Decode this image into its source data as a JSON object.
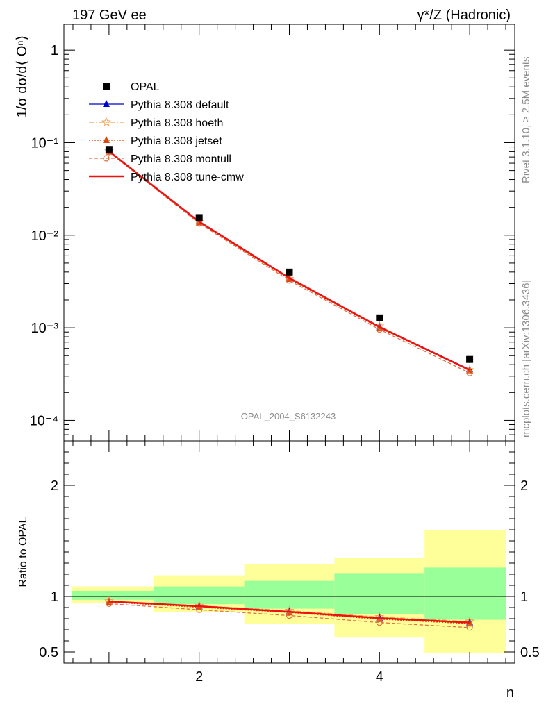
{
  "header": {
    "left": "197 GeV ee",
    "right": "γ*/Z (Hadronic)"
  },
  "side_labels": {
    "rivet": "Rivet 3.1.10, ≥ 2.5M events",
    "mcplots": "mcplots.cern.ch [arXiv:1306.3436]"
  },
  "watermark": "OPAL_2004_S6132243",
  "chart_data": [
    {
      "type": "line",
      "panel": "main",
      "ylabel": "1/σ dσ/d⟨ Oⁿ⟩",
      "yscale": "log",
      "ylim": [
        6e-05,
        1.9
      ],
      "xlim": [
        0.5,
        5.5
      ],
      "y_ticks": [
        {
          "value": 1,
          "label": "1"
        },
        {
          "value": 0.1,
          "label": "10⁻¹"
        },
        {
          "value": 0.01,
          "label": "10⁻²"
        },
        {
          "value": 0.001,
          "label": "10⁻³"
        },
        {
          "value": 0.0001,
          "label": "10⁻⁴"
        }
      ],
      "legend_position": "top-left",
      "data_series": {
        "name": "OPAL",
        "x": [
          1,
          2,
          3,
          4,
          5
        ],
        "y": [
          0.0845,
          0.0155,
          0.004,
          0.00128,
          0.000455
        ],
        "color": "#000000",
        "marker": "square"
      },
      "series": [
        {
          "name": "Pythia 8.308 default",
          "x": [
            1,
            2,
            3,
            4,
            5
          ],
          "y": [
            0.0805,
            0.0141,
            0.00345,
            0.00103,
            0.000355
          ],
          "color": "#0000cc",
          "marker": "triangle",
          "dash": ""
        },
        {
          "name": "Pythia 8.308 hoeth",
          "x": [
            1,
            2,
            3,
            4,
            5
          ],
          "y": [
            0.081,
            0.0139,
            0.0034,
            0.00104,
            0.00035
          ],
          "color": "#f0a050",
          "marker": "star",
          "dash": "7,3,2,3"
        },
        {
          "name": "Pythia 8.308 jetset",
          "x": [
            1,
            2,
            3,
            4,
            5
          ],
          "y": [
            0.08,
            0.0137,
            0.00335,
            0.001,
            0.000345
          ],
          "color": "#d84a10",
          "marker": "triangle",
          "dash": "2,2"
        },
        {
          "name": "Pythia 8.308 montull",
          "x": [
            1,
            2,
            3,
            4,
            5
          ],
          "y": [
            0.079,
            0.0134,
            0.00325,
            0.00096,
            0.000325
          ],
          "color": "#e07040",
          "marker": "circle",
          "dash": "5,3"
        },
        {
          "name": "Pythia 8.308 tune-cmw",
          "x": [
            1,
            2,
            3,
            4,
            5
          ],
          "y": [
            0.0805,
            0.014,
            0.00345,
            0.00102,
            0.00035
          ],
          "color": "#ee1111",
          "marker": "none",
          "dash": ""
        }
      ]
    },
    {
      "type": "line",
      "panel": "ratio",
      "xlabel": "n",
      "ylabel": "Ratio to OPAL",
      "ylim": [
        0.4,
        2.4
      ],
      "xlim": [
        0.5,
        5.5
      ],
      "x_ticks": [
        {
          "value": 2,
          "label": "2"
        },
        {
          "value": 4,
          "label": "4"
        }
      ],
      "y_ticks": [
        {
          "value": 0.5,
          "label": "0.5"
        },
        {
          "value": 1,
          "label": "1"
        },
        {
          "value": 2,
          "label": "2"
        }
      ],
      "bands": [
        {
          "x0": 0.5,
          "x1": 1.5,
          "inner": [
            0.97,
            1.05
          ],
          "outer": [
            0.94,
            1.09
          ]
        },
        {
          "x0": 1.5,
          "x1": 2.5,
          "inner": [
            0.93,
            1.09
          ],
          "outer": [
            0.86,
            1.19
          ]
        },
        {
          "x0": 2.5,
          "x1": 3.5,
          "inner": [
            0.89,
            1.14
          ],
          "outer": [
            0.75,
            1.29
          ]
        },
        {
          "x0": 3.5,
          "x1": 4.5,
          "inner": [
            0.84,
            1.21
          ],
          "outer": [
            0.63,
            1.35
          ]
        },
        {
          "x0": 4.5,
          "x1": 5.5,
          "inner": [
            0.79,
            1.26
          ],
          "outer": [
            0.49,
            1.6
          ]
        }
      ],
      "series": [
        {
          "name": "Pythia 8.308 default",
          "x": [
            1,
            2,
            3,
            4,
            5
          ],
          "y": [
            0.953,
            0.91,
            0.862,
            0.805,
            0.765
          ],
          "color": "#0000cc",
          "marker": "triangle",
          "dash": ""
        },
        {
          "name": "Pythia 8.308 hoeth",
          "x": [
            1,
            2,
            3,
            4,
            5
          ],
          "y": [
            0.958,
            0.917,
            0.872,
            0.815,
            0.775
          ],
          "color": "#f0a050",
          "marker": "star",
          "dash": "7,3,2,3"
        },
        {
          "name": "Pythia 8.308 jetset",
          "x": [
            1,
            2,
            3,
            4,
            5
          ],
          "y": [
            0.948,
            0.902,
            0.855,
            0.795,
            0.755
          ],
          "color": "#d84a10",
          "marker": "triangle",
          "dash": "2,2"
        },
        {
          "name": "Pythia 8.308 montull",
          "x": [
            1,
            2,
            3,
            4,
            5
          ],
          "y": [
            0.935,
            0.88,
            0.828,
            0.765,
            0.72
          ],
          "color": "#e07040",
          "marker": "circle",
          "dash": "5,3"
        },
        {
          "name": "Pythia 8.308 tune-cmw",
          "x": [
            1,
            2,
            3,
            4,
            5
          ],
          "y": [
            0.955,
            0.912,
            0.862,
            0.805,
            0.765
          ],
          "color": "#ee1111",
          "marker": "none",
          "dash": ""
        }
      ]
    }
  ]
}
